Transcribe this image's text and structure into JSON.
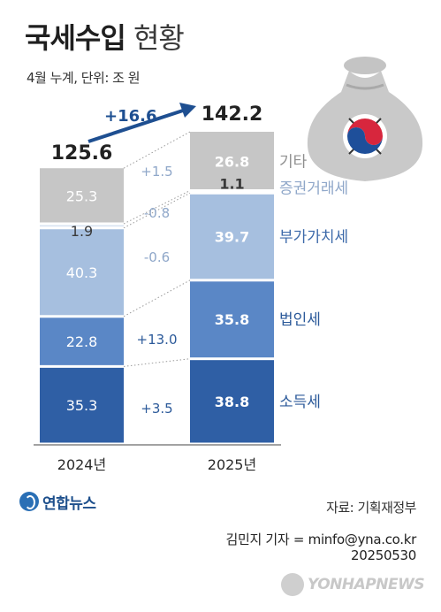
{
  "header": {
    "title_bold": "국세수입",
    "title_light": "현황",
    "subtitle": "4월 누계, 단위: 조 원"
  },
  "footer": {
    "source": "자료: 기획재정부",
    "credit_line1": "김민지 기자 = minfo@yna.co.kr",
    "credit_line2": "20250530",
    "logo_yna": "연합뉴스",
    "logo_yonhapnews": "YONHAPNEWS"
  },
  "colors": {
    "기타": "#c6c6c6",
    "증권거래세": "#d9e4f2",
    "부가가치세": "#a6bfdf",
    "법인세": "#5a87c6",
    "소득세": "#2f5fa5",
    "text_accent": "#2c5a9a",
    "increase": "#1e4f91"
  },
  "chart_data": {
    "type": "bar",
    "stacked": true,
    "categories": [
      "2024년",
      "2025년"
    ],
    "totals": [
      125.6,
      142.2
    ],
    "total_change": "+16.6",
    "series": [
      {
        "name": "소득세",
        "values": [
          35.3,
          38.8
        ],
        "change": "+3.5"
      },
      {
        "name": "법인세",
        "values": [
          22.8,
          35.8
        ],
        "change": "+13.0"
      },
      {
        "name": "부가가치세",
        "values": [
          40.3,
          39.7
        ],
        "change": "-0.6"
      },
      {
        "name": "증권거래세",
        "values": [
          1.9,
          1.1
        ],
        "change": "-0.8"
      },
      {
        "name": "기타",
        "values": [
          25.3,
          26.8
        ],
        "change": "+1.5"
      }
    ],
    "ylim": [
      0,
      142.2
    ]
  }
}
